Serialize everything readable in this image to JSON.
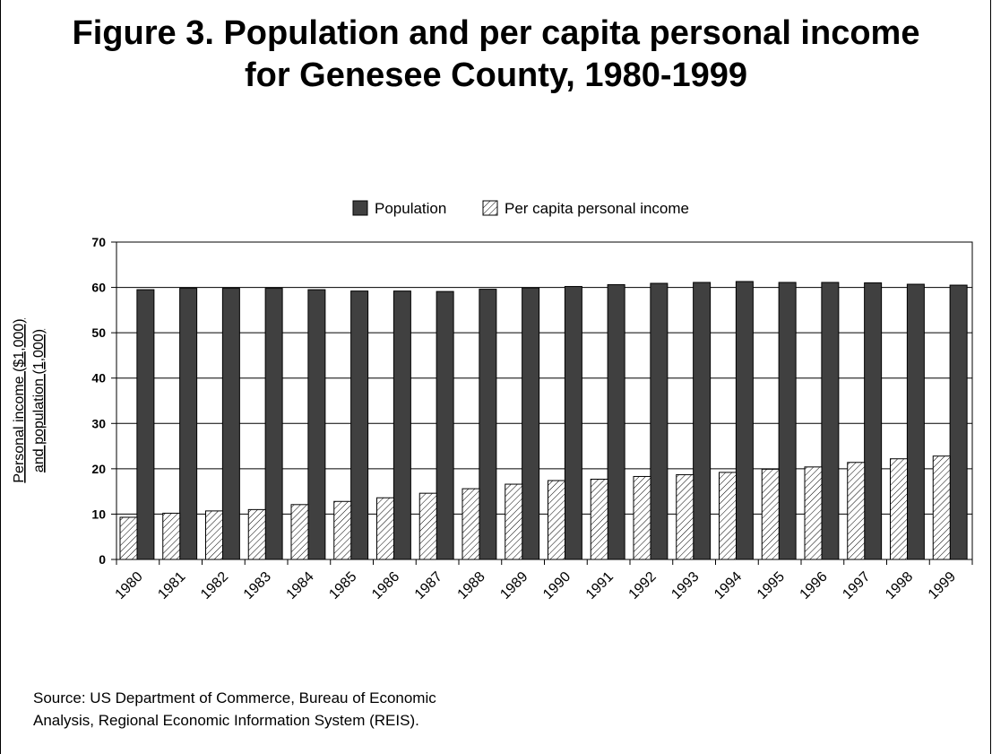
{
  "title_lines": [
    "Figure 3. Population and per capita personal income",
    "for Genesee County, 1980-1999"
  ],
  "source_lines": [
    "Source: US Department of Commerce, Bureau of Economic",
    "Analysis, Regional Economic Information System (REIS)."
  ],
  "chart_data": {
    "type": "bar",
    "categories": [
      "1980",
      "1981",
      "1982",
      "1983",
      "1984",
      "1985",
      "1986",
      "1987",
      "1988",
      "1989",
      "1990",
      "1991",
      "1992",
      "1993",
      "1994",
      "1995",
      "1996",
      "1997",
      "1998",
      "1999"
    ],
    "series": [
      {
        "name": "Population",
        "fill": "#404040",
        "values": [
          59.5,
          59.8,
          59.8,
          59.8,
          59.5,
          59.2,
          59.2,
          59.1,
          59.6,
          59.9,
          60.2,
          60.6,
          60.9,
          61.1,
          61.3,
          61.1,
          61.1,
          61.0,
          60.7,
          60.5
        ]
      },
      {
        "name": "Per capita personal income",
        "fill": "hatch",
        "values": [
          9.3,
          10.2,
          10.7,
          11.0,
          12.1,
          12.8,
          13.6,
          14.6,
          15.6,
          16.6,
          17.4,
          17.7,
          18.3,
          18.7,
          19.2,
          19.9,
          20.4,
          21.4,
          22.2,
          22.8
        ]
      }
    ],
    "ylabel_lines": [
      "Personal income ($1,000)",
      "and population (1,000)"
    ],
    "ylim": [
      0,
      70
    ],
    "yticks": [
      0,
      10,
      20,
      30,
      40,
      50,
      60,
      70
    ],
    "grid": true,
    "legend": "top-center"
  }
}
